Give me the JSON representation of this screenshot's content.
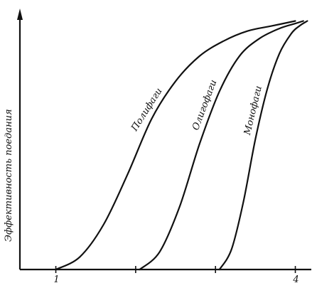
{
  "chart_data": {
    "type": "line",
    "title": "",
    "xlabel": "",
    "ylabel": "Эффективность  поедания",
    "xlim": [
      0.55,
      4.2
    ],
    "ylim": [
      0,
      100
    ],
    "x_ticks": [
      {
        "value": 1,
        "label": "1"
      },
      {
        "value": 2,
        "label": ""
      },
      {
        "value": 3,
        "label": ""
      },
      {
        "value": 4,
        "label": "4"
      }
    ],
    "grid": false,
    "legend": "none",
    "series": [
      {
        "name": "Полифаги",
        "x": [
          1.0,
          1.3,
          1.6,
          1.9,
          2.2,
          2.5,
          2.8,
          3.1,
          3.4,
          3.7,
          4.0
        ],
        "y": [
          0,
          5,
          18,
          38,
          60,
          75,
          85,
          91,
          95,
          97,
          99
        ]
      },
      {
        "name": "Олигофаги",
        "x": [
          2.05,
          2.3,
          2.55,
          2.8,
          3.05,
          3.3,
          3.55,
          3.8,
          4.0,
          4.1
        ],
        "y": [
          0,
          7,
          25,
          50,
          71,
          85,
          92,
          96,
          98,
          99
        ]
      },
      {
        "name": "Монофаги",
        "x": [
          3.05,
          3.2,
          3.35,
          3.5,
          3.65,
          3.8,
          3.95,
          4.05,
          4.15
        ],
        "y": [
          0,
          8,
          27,
          52,
          72,
          86,
          94,
          97,
          99
        ]
      }
    ]
  }
}
